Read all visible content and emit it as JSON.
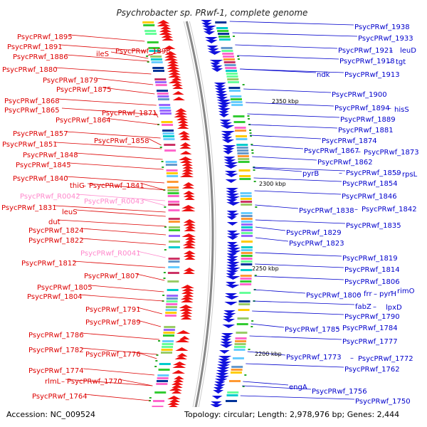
{
  "title": "Psychrobacter sp. PRwf-1, complete genome",
  "accession": "Accession: NC_009524",
  "topology": "Topology: circular; Length: 2,978,976 bp; Genes: 2,444",
  "colors": {
    "forward_gene": "#ee1111",
    "reverse_gene": "#1111dd",
    "forward_label": "#dd0000",
    "reverse_label": "#0000cc",
    "rna_label": "#ff88cc",
    "backbone": "#888888"
  },
  "ticks": [
    "2350 kbp",
    "2300 kbp",
    "2250 kbp",
    "2200 kbp"
  ],
  "left_labels": [
    "PsycPRwf_1895",
    "PsycPRwf_1891",
    "ileS",
    "PsycPRwf_1898",
    "PsycPRwf_1886",
    "PsycPRwf_1880",
    "PsycPRwf_1879",
    "PsycPRwf_1875",
    "PsycPRwf_1868",
    "PsycPRwf_1865",
    "PsycPRwf_1871",
    "PsycPRwf_1864",
    "PsycPRwf_1857",
    "PsycPRwf_1858",
    "PsycPRwf_1851",
    "PsycPRwf_1848",
    "PsycPRwf_1845",
    "PsycPRwf_1840",
    "thiG",
    "PsycPRwf_1841",
    "PsycPRwf_R0042",
    "PsycPRwf_R0043",
    "PsycPRwf_1831",
    "leuS",
    "dut",
    "PsycPRwf_1824",
    "PsycPRwf_1822",
    "PsycPRwf_R0041",
    "PsycPRwf_1812",
    "PsycPRwf_1807",
    "PsycPRwf_1805",
    "PsycPRwf_1804",
    "PsycPRwf_1791",
    "PsycPRwf_1789",
    "PsycPRwf_1786",
    "PsycPRwf_1782",
    "PsycPRwf_1776",
    "PsycPRwf_1774",
    "rlmL",
    "PsycPRwf_1770",
    "PsycPRwf_1764"
  ],
  "right_labels": [
    "PsycPRwf_1938",
    "PsycPRwf_1933",
    "PsycPRwf_1921",
    "leuD",
    "PsycPRwf_1918",
    "tgt",
    "ndk",
    "PsycPRwf_1913",
    "PsycPRwf_1900",
    "PsycPRwf_1894",
    "hisS",
    "PsycPRwf_1889",
    "PsycPRwf_1881",
    "PsycPRwf_1874",
    "PsycPRwf_1867",
    "PsycPRwf_1873",
    "PsycPRwf_1862",
    "pyrB",
    "PsycPRwf_1859",
    "rpsL",
    "PsycPRwf_1854",
    "PsycPRwf_1846",
    "PsycPRwf_1838",
    "PsycPRwf_1842",
    "PsycPRwf_1835",
    "PsycPRwf_1829",
    "PsycPRwf_1823",
    "PsycPRwf_1819",
    "PsycPRwf_1814",
    "PsycPRwf_1806",
    "PsycPRwf_1800",
    "frr",
    "pyrH",
    "rimO",
    "fabZ",
    "lpxD",
    "PsycPRwf_1790",
    "PsycPRwf_1785",
    "PsycPRwf_1784",
    "PsycPRwf_1777",
    "PsycPRwf_1773",
    "PsycPRwf_1772",
    "PsycPRwf_1762",
    "engA",
    "PsycPRwf_1756",
    "PsycPRwf_1750"
  ]
}
